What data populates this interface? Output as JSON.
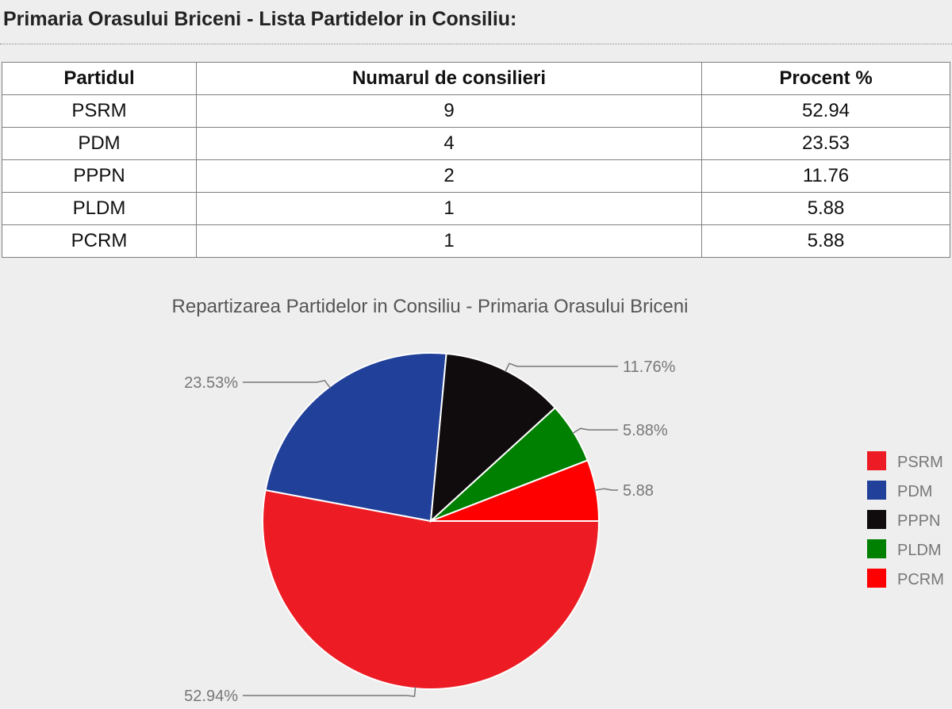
{
  "page": {
    "title": "Primaria Orasului Briceni - Lista Partidelor in Consiliu:"
  },
  "table": {
    "headers": [
      "Partidul",
      "Numarul de consilieri",
      "Procent %"
    ],
    "rows": [
      [
        "PSRM",
        "9",
        "52.94"
      ],
      [
        "PDM",
        "4",
        "23.53"
      ],
      [
        "PPPN",
        "2",
        "11.76"
      ],
      [
        "PLDM",
        "1",
        "5.88"
      ],
      [
        "PCRM",
        "1",
        "5.88"
      ]
    ]
  },
  "chart_data": {
    "type": "pie",
    "title": "Repartizarea Partidelor in Consiliu - Primaria Orasului Briceni",
    "categories": [
      "PSRM",
      "PDM",
      "PPPN",
      "PLDM",
      "PCRM"
    ],
    "values": [
      52.94,
      23.53,
      11.76,
      5.88,
      5.88
    ],
    "slice_labels": [
      "52.94%",
      "23.53%",
      "11.76%",
      "5.88%",
      "5.88"
    ],
    "colors": [
      "#ed1c24",
      "#21409a",
      "#100c0e",
      "#008000",
      "#ff0000"
    ],
    "legend_position": "right",
    "start_angle_deg": 90,
    "direction": "clockwise"
  }
}
